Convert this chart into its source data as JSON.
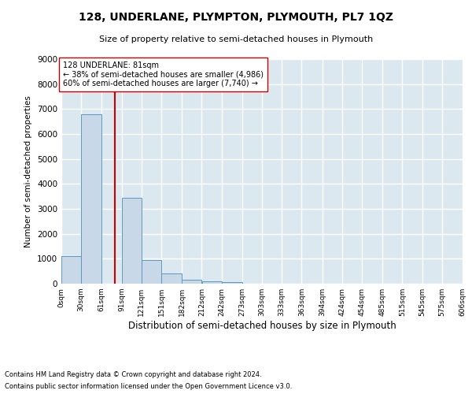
{
  "title": "128, UNDERLANE, PLYMPTON, PLYMOUTH, PL7 1QZ",
  "subtitle": "Size of property relative to semi-detached houses in Plymouth",
  "xlabel": "Distribution of semi-detached houses by size in Plymouth",
  "ylabel": "Number of semi-detached properties",
  "footnote1": "Contains HM Land Registry data © Crown copyright and database right 2024.",
  "footnote2": "Contains public sector information licensed under the Open Government Licence v3.0.",
  "bar_left_edges": [
    0,
    30,
    61,
    91,
    121,
    151,
    182,
    212,
    242,
    273,
    303,
    333,
    363,
    394,
    424,
    454,
    485,
    515,
    545,
    575
  ],
  "bar_widths": [
    30,
    31,
    30,
    30,
    30,
    31,
    30,
    30,
    31,
    30,
    30,
    30,
    31,
    30,
    30,
    31,
    30,
    30,
    30,
    31
  ],
  "bar_heights": [
    1100,
    6800,
    0,
    3450,
    950,
    400,
    150,
    90,
    70,
    0,
    0,
    0,
    0,
    0,
    0,
    0,
    0,
    0,
    0,
    0
  ],
  "bar_color": "#c8d8e8",
  "bar_edge_color": "#5a9abf",
  "property_size": 81,
  "property_line_color": "#cc0000",
  "annotation_text": "128 UNDERLANE: 81sqm\n← 38% of semi-detached houses are smaller (4,986)\n60% of semi-detached houses are larger (7,740) →",
  "annotation_box_color": "#ffffff",
  "annotation_box_edge_color": "#cc0000",
  "ylim": [
    0,
    9000
  ],
  "yticks": [
    0,
    1000,
    2000,
    3000,
    4000,
    5000,
    6000,
    7000,
    8000,
    9000
  ],
  "xtick_labels": [
    "0sqm",
    "30sqm",
    "61sqm",
    "91sqm",
    "121sqm",
    "151sqm",
    "182sqm",
    "212sqm",
    "242sqm",
    "273sqm",
    "303sqm",
    "333sqm",
    "363sqm",
    "394sqm",
    "424sqm",
    "454sqm",
    "485sqm",
    "515sqm",
    "545sqm",
    "575sqm",
    "606sqm"
  ],
  "background_color": "#ffffff",
  "plot_background_color": "#dce8f0",
  "grid_color": "#ffffff"
}
